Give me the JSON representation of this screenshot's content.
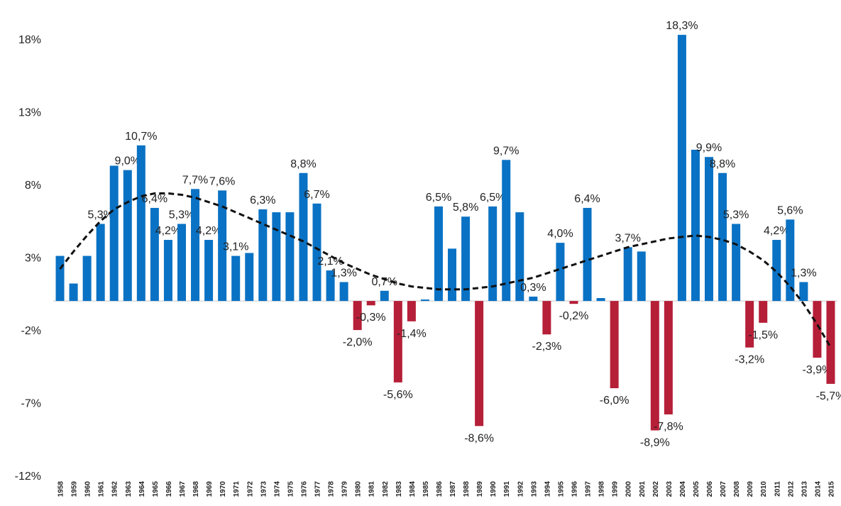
{
  "chart_data": {
    "type": "bar",
    "categories": [
      "1958",
      "1959",
      "1960",
      "1961",
      "1962",
      "1963",
      "1964",
      "1965",
      "1966",
      "1967",
      "1968",
      "1969",
      "1970",
      "1971",
      "1972",
      "1973",
      "1974",
      "1975",
      "1976",
      "1977",
      "1978",
      "1979",
      "1980",
      "1981",
      "1982",
      "1983",
      "1984",
      "1985",
      "1986",
      "1987",
      "1988",
      "1989",
      "1990",
      "1991",
      "1992",
      "1993",
      "1994",
      "1995",
      "1996",
      "1997",
      "1998",
      "1999",
      "2000",
      "2001",
      "2002",
      "2003",
      "2004",
      "2005",
      "2006",
      "2007",
      "2008",
      "2009",
      "2010",
      "2011",
      "2012",
      "2013",
      "2014",
      "2015"
    ],
    "values": [
      3.1,
      1.2,
      3.1,
      5.3,
      9.3,
      9.0,
      10.7,
      6.4,
      4.2,
      5.3,
      7.7,
      4.2,
      7.6,
      3.1,
      3.3,
      6.3,
      6.1,
      6.1,
      8.8,
      6.7,
      2.1,
      1.3,
      -2.0,
      -0.3,
      0.7,
      -5.6,
      -1.4,
      0.1,
      6.5,
      3.6,
      5.8,
      -8.6,
      6.5,
      9.7,
      6.1,
      0.3,
      -2.3,
      4.0,
      -0.2,
      6.4,
      0.2,
      -6.0,
      3.7,
      3.4,
      -8.9,
      -7.8,
      18.3,
      10.4,
      9.9,
      8.8,
      5.3,
      -3.2,
      -1.5,
      4.2,
      5.6,
      1.3,
      -3.9,
      -5.7
    ],
    "value_labels": [
      null,
      null,
      null,
      "5,3%",
      null,
      "9,0%",
      "10,7%",
      "6,4%",
      "4,2%",
      "5,3%",
      "7,7%",
      "4,2%",
      "7,6%",
      "3,1%",
      null,
      "6,3%",
      null,
      null,
      "8,8%",
      "6,7%",
      "2,1%",
      "1,3%",
      "-2,0%",
      "-0,3%",
      "0,7%",
      "-5,6%",
      "-1,4%",
      null,
      "6,5%",
      null,
      "5,8%",
      "-8,6%",
      "6,5%",
      "9,7%",
      null,
      "0,3%",
      "-2,3%",
      "4,0%",
      "-0,2%",
      "6,4%",
      null,
      "-6,0%",
      "3,7%",
      null,
      "-8,9%",
      "-7,8%",
      "18,3%",
      null,
      "9,9%",
      "8,8%",
      "5,3%",
      "-3,2%",
      "-1,5%",
      "4,2%",
      "5,6%",
      "1,3%",
      "-3,9%",
      "-5,7%"
    ],
    "colors": {
      "positive": "#0a72c4",
      "negative": "#b61f38"
    },
    "trend": {
      "color": "#111111",
      "dashed": true,
      "values": [
        2.2,
        3.4,
        4.5,
        5.5,
        6.3,
        6.8,
        7.2,
        7.4,
        7.4,
        7.3,
        7.1,
        6.8,
        6.5,
        6.1,
        5.7,
        5.3,
        4.9,
        4.5,
        4.1,
        3.6,
        3.1,
        2.6,
        2.2,
        1.8,
        1.5,
        1.2,
        1.0,
        0.9,
        0.8,
        0.8,
        0.8,
        0.9,
        1.0,
        1.2,
        1.4,
        1.6,
        1.9,
        2.2,
        2.5,
        2.8,
        3.1,
        3.4,
        3.7,
        3.9,
        4.1,
        4.3,
        4.4,
        4.5,
        4.4,
        4.2,
        3.9,
        3.4,
        2.8,
        2.0,
        1.0,
        -0.2,
        -1.6,
        -3.2
      ]
    },
    "ylim": [
      -12,
      18.5
    ],
    "yticks": [
      {
        "value": 18,
        "label": "18%"
      },
      {
        "value": 13,
        "label": "13%"
      },
      {
        "value": 8,
        "label": "8%"
      },
      {
        "value": 3,
        "label": "3%"
      },
      {
        "value": -2,
        "label": "-2%"
      },
      {
        "value": -7,
        "label": "-7%"
      },
      {
        "value": -12,
        "label": "-12%"
      }
    ],
    "grid": false
  }
}
